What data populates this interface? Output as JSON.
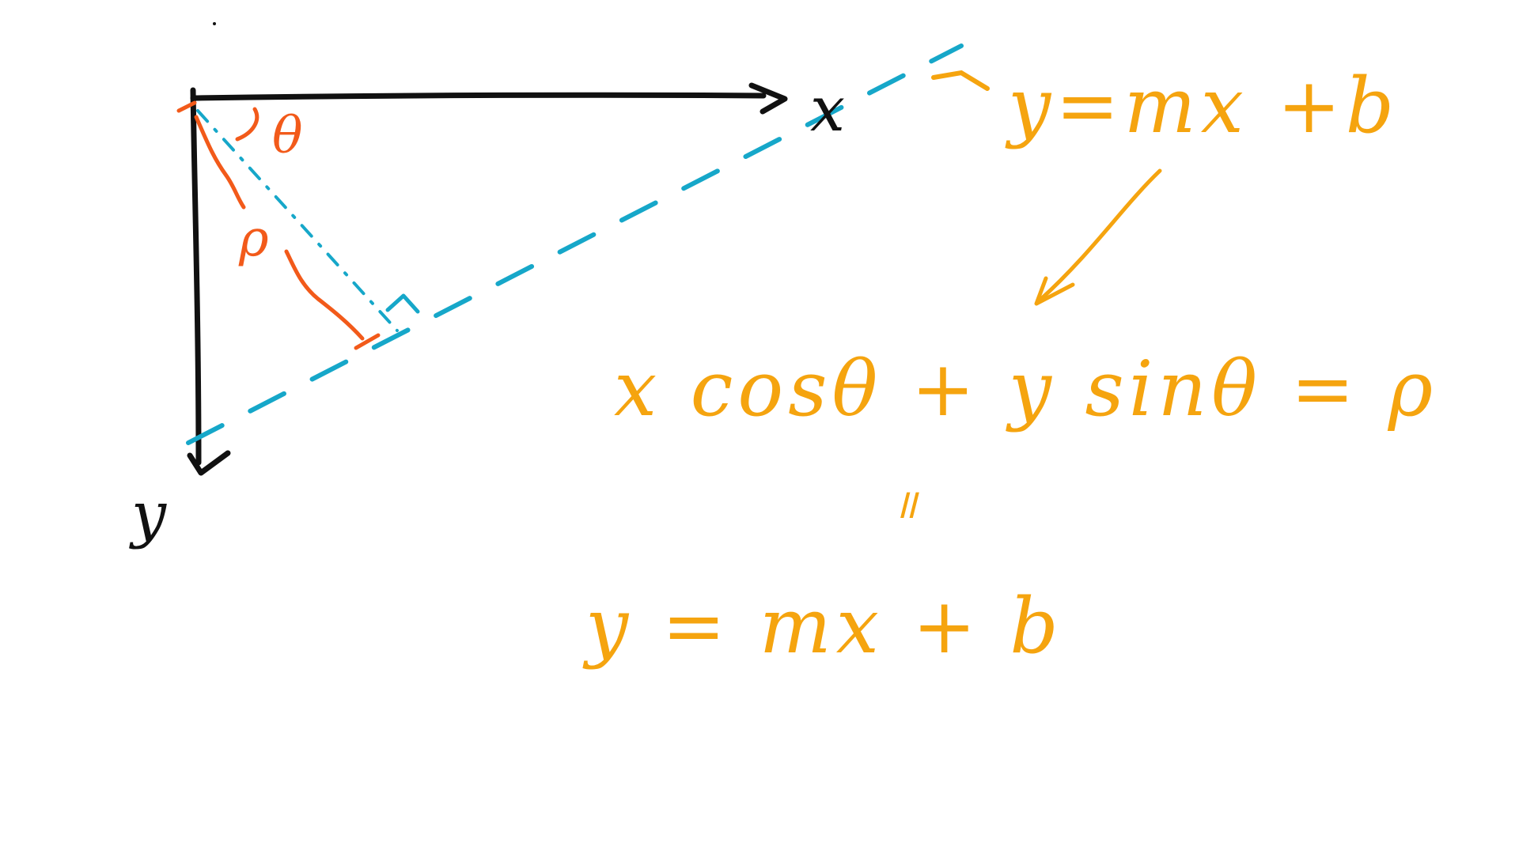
{
  "labels": {
    "x_axis": "x",
    "y_axis": "y",
    "theta": "θ",
    "rho": "ρ"
  },
  "equations": {
    "top": "y=mx +b",
    "middle": "x cosθ + y sinθ = ρ",
    "equals_mark": "॥",
    "bottom": "y = mx + b"
  },
  "colors": {
    "axes": "#111111",
    "normal_and_angle": "#f25a1a",
    "line_dashed": "#16a7c9",
    "equations": "#f5a40f"
  }
}
